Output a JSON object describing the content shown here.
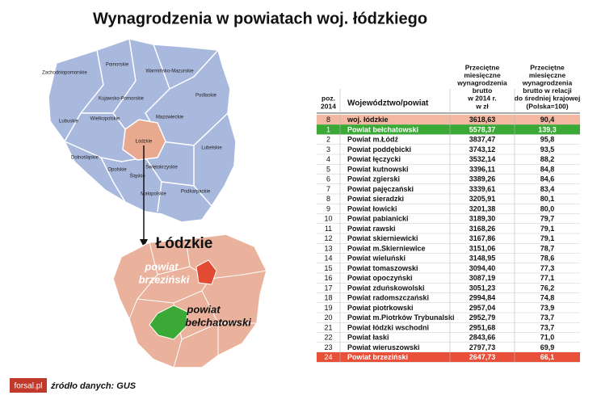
{
  "header": {
    "title": "Wynagrodzenia w powiatach woj. łódzkiego"
  },
  "map": {
    "labels": [
      "Zachodniopomorskie",
      "Pomorskie",
      "Warmińsko-Mazurskie",
      "Kujawsko-Pomorskie",
      "Podlaskie",
      "Lubuskie",
      "Wielkopolskie",
      "Mazowieckie",
      "Łódzkie",
      "Lubelskie",
      "Dolnośląskie",
      "Opolskie",
      "Świętokrzyskie",
      "Śląskie",
      "Małopolskie",
      "Podkarpackie"
    ],
    "region_title": "Łódzkie",
    "brzezinski": [
      "powiat",
      "brzeziński"
    ],
    "belchatowski": [
      "powiat",
      "bełchatowski"
    ]
  },
  "table": {
    "columns": [
      [
        "poz.",
        "2014"
      ],
      [
        "Województwo/powiat"
      ],
      [
        "Przeciętne",
        "miesięczne",
        "wynagrodzenia",
        "brutto",
        "w 2014 r.",
        "w zł"
      ],
      [
        "Przeciętne",
        "miesięczne",
        "wynagrodzenia",
        "brutto w relacji",
        "do średniej krajowej",
        "(Polska=100)"
      ]
    ],
    "rows": [
      [
        "8",
        "woj. łódzkie",
        "3618,63",
        "90,4"
      ],
      [
        "1",
        "Powiat bełchatowski",
        "5578,37",
        "139,3"
      ],
      [
        "2",
        "Powiat m.Łódź",
        "3837,47",
        "95,8"
      ],
      [
        "3",
        "Powiat poddębicki",
        "3743,12",
        "93,5"
      ],
      [
        "4",
        "Powiat łęczycki",
        "3532,14",
        "88,2"
      ],
      [
        "5",
        "Powiat kutnowski",
        "3396,11",
        "84,8"
      ],
      [
        "6",
        "Powiat zgierski",
        "3389,26",
        "84,6"
      ],
      [
        "7",
        "Powiat pajęczański",
        "3339,61",
        "83,4"
      ],
      [
        "8",
        "Powiat sieradzki",
        "3205,91",
        "80,1"
      ],
      [
        "9",
        "Powiat łowicki",
        "3201,38",
        "80,0"
      ],
      [
        "10",
        "Powiat pabianicki",
        "3189,30",
        "79,7"
      ],
      [
        "11",
        "Powiat rawski",
        "3168,26",
        "79,1"
      ],
      [
        "12",
        "Powiat skierniewicki",
        "3167,86",
        "79,1"
      ],
      [
        "13",
        "Powiat m.Skierniewice",
        "3151,06",
        "78,7"
      ],
      [
        "14",
        "Powiat wieluński",
        "3148,95",
        "78,6"
      ],
      [
        "15",
        "Powiat tomaszowski",
        "3094,40",
        "77,3"
      ],
      [
        "16",
        "Powiat opoczyński",
        "3087,19",
        "77,1"
      ],
      [
        "17",
        "Powiat zduńskowolski",
        "3051,23",
        "76,2"
      ],
      [
        "18",
        "Powiat radomszczański",
        "2994,84",
        "74,8"
      ],
      [
        "19",
        "Powiat piotrkowski",
        "2957,04",
        "73,9"
      ],
      [
        "20",
        "Powiat m.Piotrków Trybunalski",
        "2952,79",
        "73,7"
      ],
      [
        "21",
        "Powiat łódzki wschodni",
        "2951,68",
        "73,7"
      ],
      [
        "22",
        "Powiat łaski",
        "2843,66",
        "71,0"
      ],
      [
        "23",
        "Powiat wieruszowski",
        "2797,73",
        "69,9"
      ],
      [
        "24",
        "Powiat brzeziński",
        "2647,73",
        "66,1"
      ]
    ]
  },
  "footer": {
    "logo": "forsal.pl",
    "source": "źródło danych: GUS"
  }
}
